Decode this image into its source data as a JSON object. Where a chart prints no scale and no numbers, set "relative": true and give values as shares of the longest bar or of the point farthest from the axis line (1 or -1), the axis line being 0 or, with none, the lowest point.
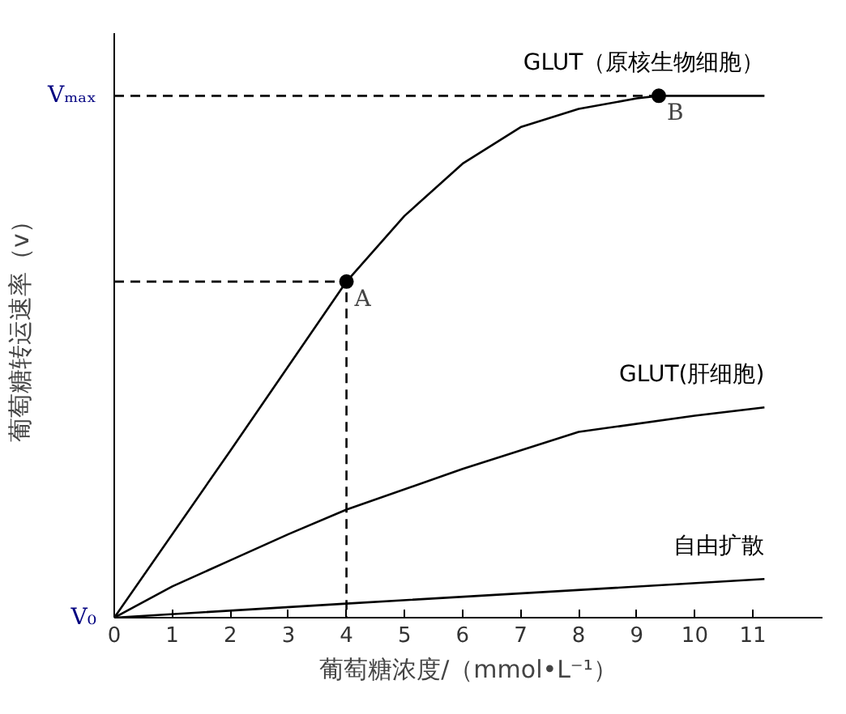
{
  "chart_data": {
    "type": "line",
    "relative": true,
    "xlabel": "葡萄糖浓度/（mmol•L⁻¹）",
    "ylabel": "葡萄糖转运速率（v）",
    "xlim": [
      0,
      12.2
    ],
    "xticks": [
      0,
      1,
      2,
      3,
      4,
      5,
      6,
      7,
      8,
      9,
      10,
      11
    ],
    "grid": false,
    "line_style": "solid",
    "marker": "none",
    "series": [
      {
        "name": "GLUT（原核生物细胞）",
        "color": "#000000",
        "x": [
          0,
          2,
          4,
          5,
          6,
          7,
          8,
          9,
          9.38,
          10,
          11.2
        ],
        "values": [
          0,
          0.32,
          0.644,
          0.77,
          0.87,
          0.94,
          0.975,
          0.995,
          1.0,
          1.0,
          1.0
        ]
      },
      {
        "name": "GLUT(肝细胞)",
        "color": "#000000",
        "x": [
          0,
          1,
          2,
          3,
          4,
          6,
          8,
          10,
          11.2
        ],
        "values": [
          0,
          0.06,
          0.11,
          0.16,
          0.207,
          0.285,
          0.356,
          0.387,
          0.403
        ]
      },
      {
        "name": "自由扩散",
        "color": "#000000",
        "x": [
          0,
          4,
          11.2
        ],
        "values": [
          0,
          0.027,
          0.074
        ]
      },
      {
        "type": "line",
        "line_style": "dashed",
        "color": "#000000",
        "x": [
          0,
          4,
          4
        ],
        "values": [
          0.644,
          0.644,
          0
        ]
      },
      {
        "type": "line",
        "line_style": "dashed",
        "color": "#000000",
        "x": [
          0,
          9.38
        ],
        "values": [
          1.0,
          1.0
        ]
      },
      {
        "type": "scatter",
        "marker": "circle",
        "color": "#000000",
        "x": [
          4,
          9.38
        ],
        "values": [
          0.644,
          1.0
        ]
      }
    ],
    "annotations": [
      {
        "text": "A",
        "x": 4,
        "y": 0.644
      },
      {
        "text": "B",
        "x": 9.38,
        "y": 1.0
      },
      {
        "text": "Vₘₐₓ",
        "x": 0,
        "y": 1.0
      },
      {
        "text": "V₀",
        "x": 0,
        "y": 0
      }
    ]
  }
}
